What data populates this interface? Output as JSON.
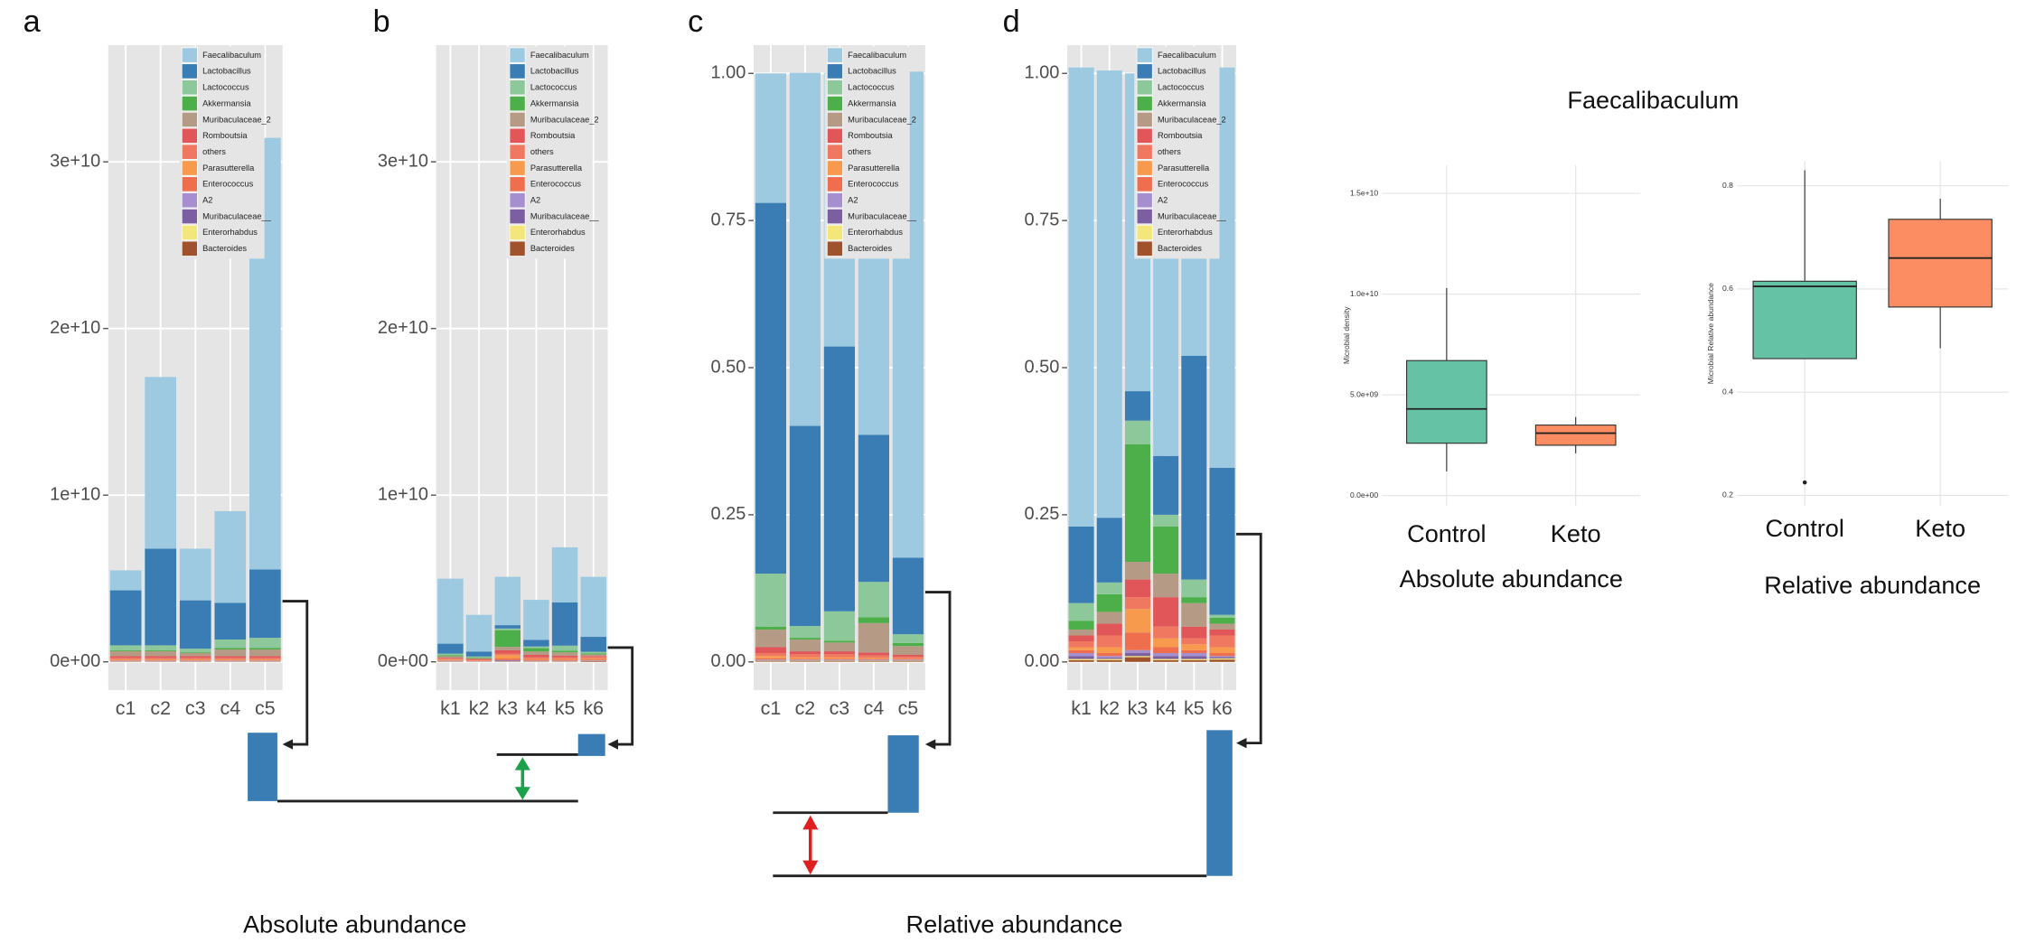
{
  "figure_labels": [
    "Absolute abundance",
    "Relative abundance"
  ],
  "chart_data": [
    {
      "type": "stacked_bar",
      "label": "a",
      "categories": [
        "c1",
        "c2",
        "c3",
        "c4",
        "c5"
      ],
      "ylim": [
        -1700000000,
        37000000000
      ],
      "yticks": [
        {
          "value": 0,
          "label": "0e+00"
        },
        {
          "value": 10000000000,
          "label": "1e+10"
        },
        {
          "value": 20000000000,
          "label": "2e+10"
        },
        {
          "value": 30000000000,
          "label": "3e+10"
        }
      ],
      "grid": true,
      "series": [
        {
          "name": "Faecalibaculum",
          "color": "#9ecae1",
          "values": [
            1200000000,
            10300000000,
            3100000000,
            5500000000,
            25900000000
          ]
        },
        {
          "name": "Lactobacillus",
          "color": "#3a7db5",
          "values": [
            3300000000,
            5800000000,
            2900000000,
            2200000000,
            4100000000
          ]
        },
        {
          "name": "Lactococcus",
          "color": "#8dc89b",
          "values": [
            300000000,
            300000000,
            200000000,
            500000000,
            600000000
          ]
        },
        {
          "name": "Akkermansia",
          "color": "#4daf4a",
          "values": [
            50000000,
            50000000,
            50000000,
            100000000,
            100000000
          ]
        },
        {
          "name": "Muribaculaceae_2",
          "color": "#b59a86",
          "values": [
            300000000,
            300000000,
            200000000,
            400000000,
            400000000
          ]
        },
        {
          "name": "Romboutsia",
          "color": "#e15759",
          "values": [
            100000000,
            100000000,
            100000000,
            100000000,
            100000000
          ]
        },
        {
          "name": "others",
          "color": "#f07860",
          "values": [
            100000000,
            100000000,
            100000000,
            100000000,
            100000000
          ]
        },
        {
          "name": "Parasutterella",
          "color": "#f79a4e",
          "values": [
            50000000,
            50000000,
            50000000,
            50000000,
            50000000
          ]
        },
        {
          "name": "Enterococcus",
          "color": "#ee6e4e",
          "values": [
            20000000,
            20000000,
            20000000,
            20000000,
            20000000
          ]
        },
        {
          "name": "A2",
          "color": "#a58fcf",
          "values": [
            20000000,
            20000000,
            20000000,
            20000000,
            20000000
          ]
        },
        {
          "name": "Muribaculaceae__",
          "color": "#7b5fa0",
          "values": [
            20000000,
            20000000,
            20000000,
            20000000,
            20000000
          ]
        },
        {
          "name": "Enterorhabdus",
          "color": "#f3e77b",
          "values": [
            10000000,
            10000000,
            10000000,
            10000000,
            10000000
          ]
        },
        {
          "name": "Bacteroides",
          "color": "#a0522d",
          "values": [
            20000000,
            20000000,
            20000000,
            20000000,
            20000000
          ]
        }
      ]
    },
    {
      "type": "stacked_bar",
      "label": "b",
      "categories": [
        "k1",
        "k2",
        "k3",
        "k4",
        "k5",
        "k6"
      ],
      "ylim": [
        -1700000000,
        37000000000
      ],
      "yticks": [
        {
          "value": 0,
          "label": "0e+00"
        },
        {
          "value": 10000000000,
          "label": "1e+10"
        },
        {
          "value": 20000000000,
          "label": "2e+10"
        },
        {
          "value": 30000000000,
          "label": "3e+10"
        }
      ],
      "grid": true,
      "series": [
        {
          "name": "Faecalibaculum",
          "color": "#9ecae1",
          "values": [
            3900000000,
            2200000000,
            2900000000,
            2400000000,
            3300000000,
            3600000000
          ]
        },
        {
          "name": "Lactobacillus",
          "color": "#3a7db5",
          "values": [
            600000000,
            300000000,
            200000000,
            400000000,
            2600000000,
            900000000
          ]
        },
        {
          "name": "Lactococcus",
          "color": "#8dc89b",
          "values": [
            100000000,
            50000000,
            100000000,
            100000000,
            300000000,
            100000000
          ]
        },
        {
          "name": "Akkermansia",
          "color": "#4daf4a",
          "values": [
            50000000,
            50000000,
            1000000000,
            200000000,
            100000000,
            50000000
          ]
        },
        {
          "name": "Muribaculaceae_2",
          "color": "#b59a86",
          "values": [
            100000000,
            50000000,
            200000000,
            200000000,
            200000000,
            100000000
          ]
        },
        {
          "name": "Romboutsia",
          "color": "#e15759",
          "values": [
            50000000,
            50000000,
            200000000,
            150000000,
            100000000,
            50000000
          ]
        },
        {
          "name": "others",
          "color": "#f07860",
          "values": [
            50000000,
            50000000,
            100000000,
            100000000,
            100000000,
            100000000
          ]
        },
        {
          "name": "Parasutterella",
          "color": "#f79a4e",
          "values": [
            50000000,
            20000000,
            200000000,
            50000000,
            50000000,
            50000000
          ]
        },
        {
          "name": "Enterococcus",
          "color": "#ee6e4e",
          "values": [
            20000000,
            10000000,
            100000000,
            50000000,
            50000000,
            50000000
          ]
        },
        {
          "name": "A2",
          "color": "#a58fcf",
          "values": [
            20000000,
            10000000,
            20000000,
            20000000,
            20000000,
            20000000
          ]
        },
        {
          "name": "Muribaculaceae__",
          "color": "#7b5fa0",
          "values": [
            20000000,
            10000000,
            50000000,
            20000000,
            20000000,
            20000000
          ]
        },
        {
          "name": "Enterorhabdus",
          "color": "#f3e77b",
          "values": [
            10000000,
            10000000,
            10000000,
            10000000,
            10000000,
            10000000
          ]
        },
        {
          "name": "Bacteroides",
          "color": "#a0522d",
          "values": [
            20000000,
            10000000,
            20000000,
            20000000,
            20000000,
            50000000
          ]
        }
      ]
    },
    {
      "type": "stacked_bar",
      "label": "c",
      "categories": [
        "c1",
        "c2",
        "c3",
        "c4",
        "c5"
      ],
      "ylim": [
        -0.048,
        1.048
      ],
      "yticks": [
        {
          "value": 0,
          "label": "0.00"
        },
        0.25,
        {
          "value": 0.5,
          "label": "0.50"
        },
        0.75,
        {
          "value": 1,
          "label": "1.00"
        }
      ],
      "grid": true,
      "series": [
        {
          "name": "Faecalibaculum",
          "color": "#9ecae1",
          "values": [
            0.22,
            0.6,
            0.465,
            0.615,
            0.826
          ]
        },
        {
          "name": "Lactobacillus",
          "color": "#3a7db5",
          "values": [
            0.63,
            0.34,
            0.45,
            0.25,
            0.13
          ]
        },
        {
          "name": "Lactococcus",
          "color": "#8dc89b",
          "values": [
            0.09,
            0.02,
            0.05,
            0.06,
            0.015
          ]
        },
        {
          "name": "Akkermansia",
          "color": "#4daf4a",
          "values": [
            0.005,
            0.003,
            0.003,
            0.01,
            0.005
          ]
        },
        {
          "name": "Muribaculaceae_2",
          "color": "#b59a86",
          "values": [
            0.03,
            0.02,
            0.015,
            0.05,
            0.015
          ]
        },
        {
          "name": "Romboutsia",
          "color": "#e15759",
          "values": [
            0.01,
            0.005,
            0.005,
            0.005,
            0.003
          ]
        },
        {
          "name": "others",
          "color": "#f07860",
          "values": [
            0.005,
            0.005,
            0.005,
            0.004,
            0.003
          ]
        },
        {
          "name": "Parasutterella",
          "color": "#f79a4e",
          "values": [
            0.004,
            0.003,
            0.003,
            0.002,
            0.001
          ]
        },
        {
          "name": "Enterococcus",
          "color": "#ee6e4e",
          "values": [
            0.002,
            0.001,
            0.001,
            0.001,
            0.001
          ]
        },
        {
          "name": "A2",
          "color": "#a58fcf",
          "values": [
            0.001,
            0.001,
            0.001,
            0.001,
            0.001
          ]
        },
        {
          "name": "Muribaculaceae__",
          "color": "#7b5fa0",
          "values": [
            0.001,
            0.001,
            0.001,
            0.001,
            0.001
          ]
        },
        {
          "name": "Enterorhabdus",
          "color": "#f3e77b",
          "values": [
            0.001,
            0.001,
            0.001,
            0.001,
            0.001
          ]
        },
        {
          "name": "Bacteroides",
          "color": "#a0522d",
          "values": [
            0.001,
            0.001,
            0.001,
            0.001,
            0.001
          ]
        }
      ]
    },
    {
      "type": "stacked_bar",
      "label": "d",
      "categories": [
        "k1",
        "k2",
        "k3",
        "k4",
        "k5",
        "k6"
      ],
      "ylim": [
        -0.048,
        1.048
      ],
      "yticks": [
        {
          "value": 0,
          "label": "0.00"
        },
        0.25,
        {
          "value": 0.5,
          "label": "0.50"
        },
        0.75,
        {
          "value": 1,
          "label": "1.00"
        }
      ],
      "grid": true,
      "series": [
        {
          "name": "Faecalibaculum",
          "color": "#9ecae1",
          "values": [
            0.78,
            0.76,
            0.54,
            0.65,
            0.49,
            0.68
          ]
        },
        {
          "name": "Lactobacillus",
          "color": "#3a7db5",
          "values": [
            0.13,
            0.11,
            0.05,
            0.1,
            0.38,
            0.25
          ]
        },
        {
          "name": "Lactococcus",
          "color": "#8dc89b",
          "values": [
            0.03,
            0.02,
            0.04,
            0.02,
            0.03,
            0.005
          ]
        },
        {
          "name": "Akkermansia",
          "color": "#4daf4a",
          "values": [
            0.015,
            0.03,
            0.2,
            0.08,
            0.01,
            0.01
          ]
        },
        {
          "name": "Muribaculaceae_2",
          "color": "#b59a86",
          "values": [
            0.01,
            0.02,
            0.03,
            0.04,
            0.04,
            0.01
          ]
        },
        {
          "name": "Romboutsia",
          "color": "#e15759",
          "values": [
            0.01,
            0.02,
            0.03,
            0.05,
            0.02,
            0.01
          ]
        },
        {
          "name": "others",
          "color": "#f07860",
          "values": [
            0.01,
            0.02,
            0.02,
            0.02,
            0.01,
            0.02
          ]
        },
        {
          "name": "Parasutterella",
          "color": "#f79a4e",
          "values": [
            0.005,
            0.01,
            0.04,
            0.015,
            0.01,
            0.01
          ]
        },
        {
          "name": "Enterococcus",
          "color": "#ee6e4e",
          "values": [
            0.005,
            0.005,
            0.03,
            0.01,
            0.005,
            0.005
          ]
        },
        {
          "name": "A2",
          "color": "#a58fcf",
          "values": [
            0.005,
            0.003,
            0.005,
            0.005,
            0.005,
            0.002
          ]
        },
        {
          "name": "Muribaculaceae__",
          "color": "#7b5fa0",
          "values": [
            0.005,
            0.002,
            0.005,
            0.005,
            0.005,
            0.002
          ]
        },
        {
          "name": "Enterorhabdus",
          "color": "#f3e77b",
          "values": [
            0.002,
            0.002,
            0.002,
            0.002,
            0.002,
            0.002
          ]
        },
        {
          "name": "Bacteroides",
          "color": "#a0522d",
          "values": [
            0.003,
            0.003,
            0.008,
            0.003,
            0.003,
            0.004
          ]
        }
      ]
    },
    {
      "type": "box",
      "title": "Faecalibaculum",
      "xlabel": "Absolute abundance",
      "ylabel": "Microbial density",
      "categories": [
        "Control",
        "Keto"
      ],
      "colors": [
        "#66c2a5",
        "#fc8d62"
      ],
      "min": [
        1200000000,
        2100000000
      ],
      "q1": [
        2600000000,
        2500000000
      ],
      "median": [
        4300000000,
        3100000000
      ],
      "q3": [
        6700000000,
        3500000000
      ],
      "max": [
        10300000000,
        3900000000
      ],
      "ylim": [
        -500000000,
        16400000000
      ],
      "yticks": [
        {
          "value": 0,
          "label": "0.0e+00"
        },
        {
          "value": 5000000000,
          "label": "5.0e+09"
        },
        {
          "value": 10000000000,
          "label": "1.0e+10"
        },
        {
          "value": 15000000000,
          "label": "1.5e+10"
        }
      ],
      "grid": true
    },
    {
      "type": "box",
      "xlabel": "Relative abundance",
      "ylabel": "Microbial Relative abundance",
      "categories": [
        "Control",
        "Keto"
      ],
      "colors": [
        "#66c2a5",
        "#fc8d62"
      ],
      "min": [
        0.465,
        0.485
      ],
      "q1": [
        0.465,
        0.565
      ],
      "median": [
        0.605,
        0.66
      ],
      "q3": [
        0.615,
        0.735
      ],
      "max": [
        0.83,
        0.775
      ],
      "outliers": [
        [
          0.225
        ],
        []
      ],
      "ylim": [
        0.18,
        0.8475
      ],
      "yticks": [
        0.2,
        0.4,
        0.6,
        0.8
      ],
      "grid": true
    }
  ]
}
